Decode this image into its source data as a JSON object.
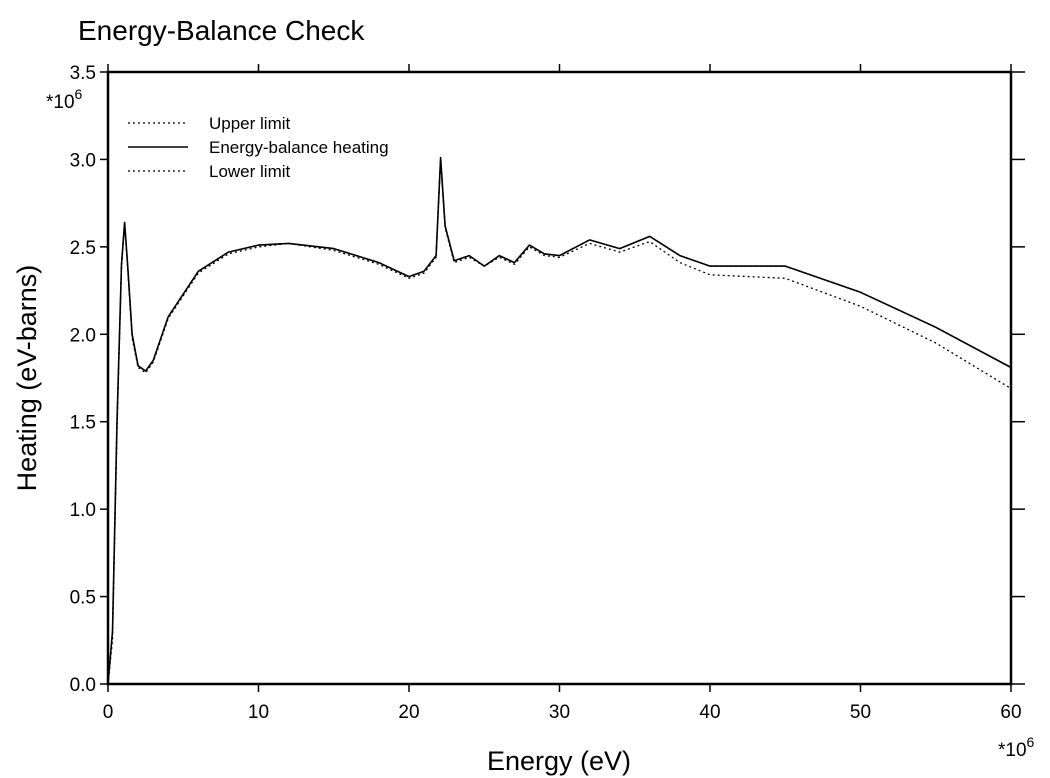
{
  "chart_data": {
    "type": "line",
    "title": "Energy-Balance Check",
    "xlabel": "Energy (eV)",
    "ylabel": "Heating (eV-barns)",
    "x_multiplier": "*10^6",
    "y_multiplier": "*10^6",
    "xlim": [
      0,
      60
    ],
    "ylim": [
      0,
      3.5
    ],
    "x_ticks": [
      0,
      10,
      20,
      30,
      40,
      50,
      60
    ],
    "x_tick_labels": [
      "0",
      "10",
      "20",
      "30",
      "40",
      "50",
      "60"
    ],
    "y_ticks": [
      0,
      0.5,
      1.0,
      1.5,
      2.0,
      2.5,
      3.0,
      3.5
    ],
    "y_tick_labels": [
      "0.0",
      "0.5",
      "1.0",
      "1.5",
      "2.0",
      "2.5",
      "3.0",
      "3.5"
    ],
    "grid": false,
    "legend_position": "top-left",
    "series": [
      {
        "name": "Upper limit",
        "style": "dotted",
        "x": [
          0,
          0.3,
          0.6,
          0.9,
          1.1,
          1.3,
          1.6,
          2.0,
          2.5,
          3.0,
          4.0,
          6.0,
          8.0,
          10,
          12,
          15,
          18,
          20,
          21,
          21.8,
          22.1,
          22.4,
          23,
          24,
          25,
          26,
          27,
          28,
          29,
          30,
          32,
          34,
          36,
          38,
          40,
          45,
          50,
          55,
          60
        ],
        "y": [
          0,
          0.3,
          1.5,
          2.4,
          2.64,
          2.4,
          2.0,
          1.82,
          1.79,
          1.85,
          2.1,
          2.36,
          2.47,
          2.51,
          2.52,
          2.49,
          2.41,
          2.33,
          2.36,
          2.45,
          3.01,
          2.62,
          2.42,
          2.45,
          2.39,
          2.45,
          2.41,
          2.51,
          2.46,
          2.45,
          2.54,
          2.49,
          2.56,
          2.45,
          2.39,
          2.39,
          2.24,
          2.04,
          1.81
        ]
      },
      {
        "name": "Energy-balance heating",
        "style": "solid",
        "x": [
          0,
          0.3,
          0.6,
          0.9,
          1.1,
          1.3,
          1.6,
          2.0,
          2.5,
          3.0,
          4.0,
          6.0,
          8.0,
          10,
          12,
          15,
          18,
          20,
          21,
          21.8,
          22.1,
          22.4,
          23,
          24,
          25,
          26,
          27,
          28,
          29,
          30,
          32,
          34,
          36,
          38,
          40,
          45,
          50,
          55,
          60
        ],
        "y": [
          0,
          0.3,
          1.5,
          2.4,
          2.64,
          2.4,
          2.0,
          1.82,
          1.79,
          1.85,
          2.1,
          2.36,
          2.47,
          2.51,
          2.52,
          2.49,
          2.41,
          2.33,
          2.36,
          2.45,
          3.01,
          2.62,
          2.42,
          2.45,
          2.39,
          2.45,
          2.41,
          2.51,
          2.46,
          2.45,
          2.54,
          2.49,
          2.56,
          2.45,
          2.39,
          2.39,
          2.24,
          2.04,
          1.81
        ]
      },
      {
        "name": "Lower limit",
        "style": "dotted",
        "x": [
          0,
          0.3,
          0.6,
          0.9,
          1.1,
          1.3,
          1.6,
          2.0,
          2.5,
          3.0,
          4.0,
          6.0,
          8.0,
          10,
          12,
          15,
          18,
          20,
          21,
          21.8,
          22.1,
          22.4,
          23,
          24,
          25,
          26,
          27,
          28,
          29,
          30,
          32,
          34,
          36,
          38,
          40,
          45,
          50,
          55,
          60
        ],
        "y": [
          0,
          0.25,
          1.45,
          2.38,
          2.63,
          2.38,
          1.98,
          1.81,
          1.78,
          1.84,
          2.09,
          2.35,
          2.46,
          2.5,
          2.52,
          2.48,
          2.4,
          2.32,
          2.35,
          2.44,
          3.0,
          2.61,
          2.41,
          2.44,
          2.39,
          2.44,
          2.4,
          2.5,
          2.45,
          2.44,
          2.52,
          2.47,
          2.53,
          2.41,
          2.34,
          2.32,
          2.16,
          1.95,
          1.69
        ]
      }
    ]
  }
}
